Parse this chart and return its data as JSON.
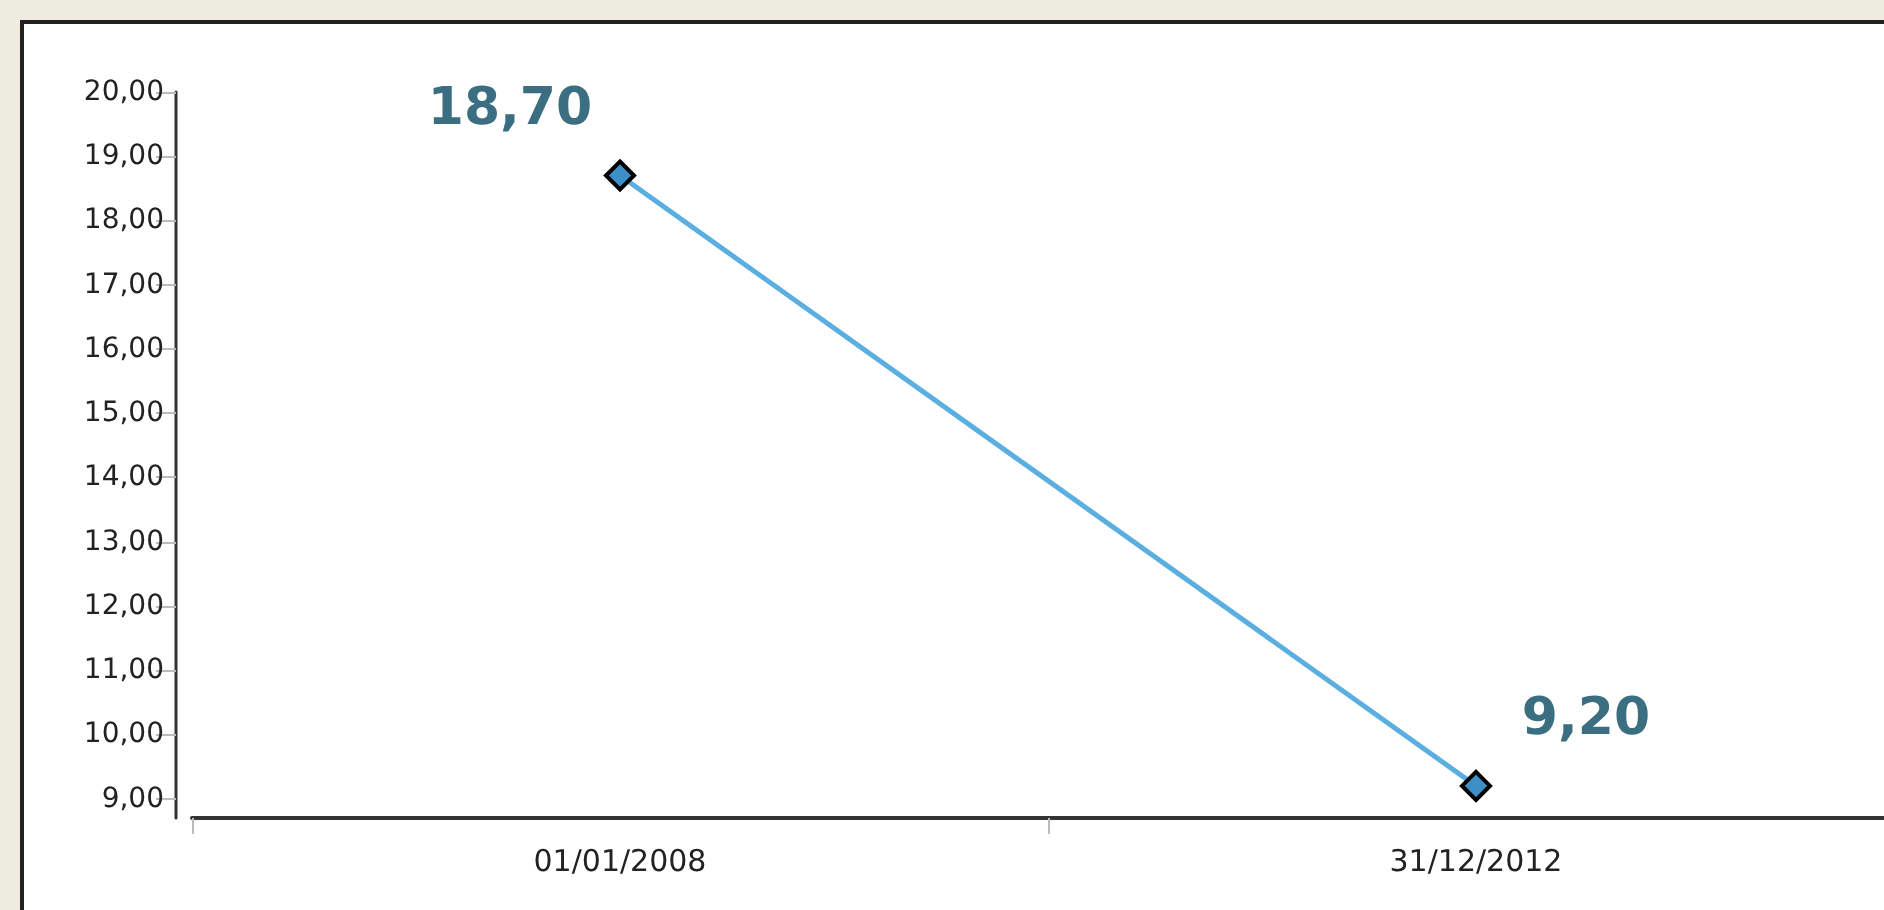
{
  "chart_data": {
    "type": "line",
    "categories": [
      "01/01/2008",
      "31/12/2012"
    ],
    "series": [
      {
        "color": "#5aaee0",
        "values": [
          18.7,
          9.2
        ],
        "value_labels": [
          "18,70",
          "9,20"
        ]
      }
    ],
    "ylim": [
      8.7,
      20
    ],
    "yticks": [
      {
        "value": 9,
        "label": "9,00"
      },
      {
        "value": 10,
        "label": "10,00"
      },
      {
        "value": 11,
        "label": "11,00"
      },
      {
        "value": 12,
        "label": "12,00"
      },
      {
        "value": 13,
        "label": "13,00"
      },
      {
        "value": 14,
        "label": "14,00"
      },
      {
        "value": 15,
        "label": "15,00"
      },
      {
        "value": 16,
        "label": "16,00"
      },
      {
        "value": 17,
        "label": "17,00"
      },
      {
        "value": 18,
        "label": "18,00"
      },
      {
        "value": 19,
        "label": "19,00"
      },
      {
        "value": 20,
        "label": "20,00"
      }
    ],
    "grid": false,
    "marker": "diamond",
    "line_style": "solid"
  }
}
